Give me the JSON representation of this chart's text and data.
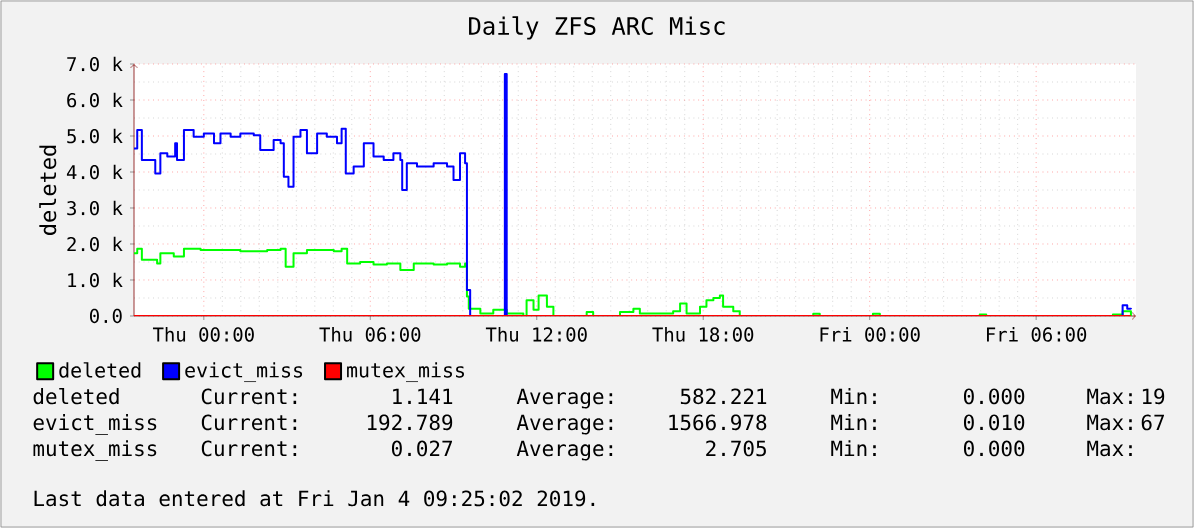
{
  "chart_data": {
    "type": "step",
    "title": "Daily ZFS ARC Misc",
    "ylabel": "deleted",
    "xlim": [
      "2019-01-02T21:29",
      "2019-01-04T09:36"
    ],
    "ylim": [
      0,
      7000
    ],
    "xticks": [
      {
        "value": "2019-01-03T00:00",
        "label": "Thu 00:00"
      },
      {
        "value": "2019-01-03T06:00",
        "label": "Thu 06:00"
      },
      {
        "value": "2019-01-03T12:00",
        "label": "Thu 12:00"
      },
      {
        "value": "2019-01-03T18:00",
        "label": "Thu 18:00"
      },
      {
        "value": "2019-01-04T00:00",
        "label": "Fri 00:00"
      },
      {
        "value": "2019-01-04T06:00",
        "label": "Fri 06:00"
      }
    ],
    "yticks": [
      {
        "value": 0,
        "label": "0.0"
      },
      {
        "value": 1000,
        "label": "1.0 k"
      },
      {
        "value": 2000,
        "label": "2.0 k"
      },
      {
        "value": 3000,
        "label": "3.0 k"
      },
      {
        "value": 4000,
        "label": "4.0 k"
      },
      {
        "value": 5000,
        "label": "5.0 k"
      },
      {
        "value": 6000,
        "label": "6.0 k"
      },
      {
        "value": 7000,
        "label": "7.0 k"
      }
    ],
    "grid": true,
    "legend": "bottom",
    "series": [
      {
        "name": "deleted",
        "color": "#00ff00",
        "x": [
          "2019-01-02T21:29",
          "2019-01-02T21:36",
          "2019-01-02T21:46",
          "2019-01-02T22:19",
          "2019-01-02T22:26",
          "2019-01-02T22:55",
          "2019-01-02T23:17",
          "2019-01-02T23:53",
          "2019-01-03T00:36",
          "2019-01-03T01:19",
          "2019-01-03T02:17",
          "2019-01-03T02:46",
          "2019-01-03T02:57",
          "2019-01-03T03:14",
          "2019-01-03T03:43",
          "2019-01-03T04:12",
          "2019-01-03T04:41",
          "2019-01-03T04:58",
          "2019-01-03T05:10",
          "2019-01-03T05:38",
          "2019-01-03T06:07",
          "2019-01-03T06:36",
          "2019-01-03T07:05",
          "2019-01-03T07:34",
          "2019-01-03T08:17",
          "2019-01-03T08:46",
          "2019-01-03T09:14",
          "2019-01-03T09:25",
          "2019-01-03T09:29",
          "2019-01-03T09:33",
          "2019-01-03T09:58",
          "2019-01-03T10:26",
          "2019-01-03T10:55",
          "2019-01-03T11:31",
          "2019-01-03T11:38",
          "2019-01-03T11:53",
          "2019-01-03T12:04",
          "2019-01-03T12:22",
          "2019-01-03T12:36",
          "2019-01-03T13:48",
          "2019-01-03T14:02",
          "2019-01-03T14:31",
          "2019-01-03T15:00",
          "2019-01-03T15:29",
          "2019-01-03T15:43",
          "2019-01-03T16:26",
          "2019-01-03T16:55",
          "2019-01-03T17:10",
          "2019-01-03T17:24",
          "2019-01-03T17:53",
          "2019-01-03T18:07",
          "2019-01-03T18:22",
          "2019-01-03T18:36",
          "2019-01-03T18:43",
          "2019-01-03T19:05",
          "2019-01-03T19:19",
          "2019-01-03T21:58",
          "2019-01-03T22:12",
          "2019-01-04T00:07",
          "2019-01-04T00:22",
          "2019-01-04T03:58",
          "2019-01-04T04:12",
          "2019-01-04T08:46",
          "2019-01-04T09:07",
          "2019-01-04T09:25"
        ],
        "values": [
          1740,
          1870,
          1560,
          1460,
          1740,
          1650,
          1870,
          1830,
          1830,
          1800,
          1830,
          1870,
          1370,
          1740,
          1830,
          1830,
          1800,
          1870,
          1460,
          1500,
          1430,
          1460,
          1280,
          1460,
          1430,
          1460,
          1370,
          1460,
          540,
          200,
          70,
          170,
          70,
          0,
          440,
          170,
          570,
          260,
          0,
          110,
          0,
          0,
          110,
          200,
          70,
          70,
          130,
          350,
          70,
          260,
          440,
          500,
          570,
          260,
          130,
          0,
          60,
          0,
          60,
          0,
          40,
          0,
          40,
          130,
          0
        ]
      },
      {
        "name": "evict_miss",
        "color": "#0000ff",
        "x": [
          "2019-01-02T21:29",
          "2019-01-02T21:36",
          "2019-01-02T21:46",
          "2019-01-02T22:05",
          "2019-01-02T22:15",
          "2019-01-02T22:26",
          "2019-01-02T22:41",
          "2019-01-02T22:58",
          "2019-01-02T23:02",
          "2019-01-02T23:17",
          "2019-01-02T23:38",
          "2019-01-03T00:00",
          "2019-01-03T00:22",
          "2019-01-03T00:36",
          "2019-01-03T00:58",
          "2019-01-03T01:19",
          "2019-01-03T01:48",
          "2019-01-03T02:02",
          "2019-01-03T02:31",
          "2019-01-03T02:46",
          "2019-01-03T02:53",
          "2019-01-03T03:03",
          "2019-01-03T03:14",
          "2019-01-03T03:29",
          "2019-01-03T03:43",
          "2019-01-03T04:05",
          "2019-01-03T04:26",
          "2019-01-03T04:48",
          "2019-01-03T04:58",
          "2019-01-03T05:07",
          "2019-01-03T05:24",
          "2019-01-03T05:46",
          "2019-01-03T06:07",
          "2019-01-03T06:29",
          "2019-01-03T06:50",
          "2019-01-03T07:05",
          "2019-01-03T07:09",
          "2019-01-03T07:19",
          "2019-01-03T07:41",
          "2019-01-03T08:17",
          "2019-01-03T08:46",
          "2019-01-03T09:00",
          "2019-01-03T09:14",
          "2019-01-03T09:25",
          "2019-01-03T09:29",
          "2019-01-03T09:36",
          "2019-01-03T10:48",
          "2019-01-03T10:51",
          "2019-01-03T10:55",
          "2019-01-04T09:00",
          "2019-01-04T09:07",
          "2019-01-04T09:17",
          "2019-01-04T09:25"
        ],
        "values": [
          4650,
          5170,
          4330,
          4330,
          3960,
          4520,
          4430,
          4800,
          4330,
          5170,
          4980,
          5070,
          4800,
          5070,
          4980,
          5070,
          5020,
          4610,
          4890,
          4800,
          3870,
          3590,
          4980,
          5170,
          4520,
          5070,
          4980,
          4800,
          5200,
          3960,
          4150,
          4800,
          4430,
          4330,
          4520,
          4330,
          3500,
          4240,
          4150,
          4240,
          4150,
          3780,
          4520,
          4240,
          720,
          0,
          0,
          6720,
          0,
          0,
          300,
          200,
          190
        ]
      },
      {
        "name": "mutex_miss",
        "color": "#ff0000",
        "x": [
          "2019-01-02T21:29",
          "2019-01-04T09:25"
        ],
        "values": [
          0,
          0
        ]
      }
    ],
    "annotations": [
      "deleted",
      "Current:",
      "1.141",
      "Average:",
      "582.221",
      "Min:",
      "0.000",
      "Max:",
      "19",
      "evict_miss",
      "Current:",
      "192.789",
      "Average:",
      "1566.978",
      "Min:",
      "0.010",
      "Max:",
      "67",
      "mutex_miss",
      "Current:",
      "0.027",
      "Average:",
      "2.705",
      "Min:",
      "0.000",
      "Max:",
      "Last data entered at Fri Jan  4 09:25:02 2019."
    ]
  }
}
